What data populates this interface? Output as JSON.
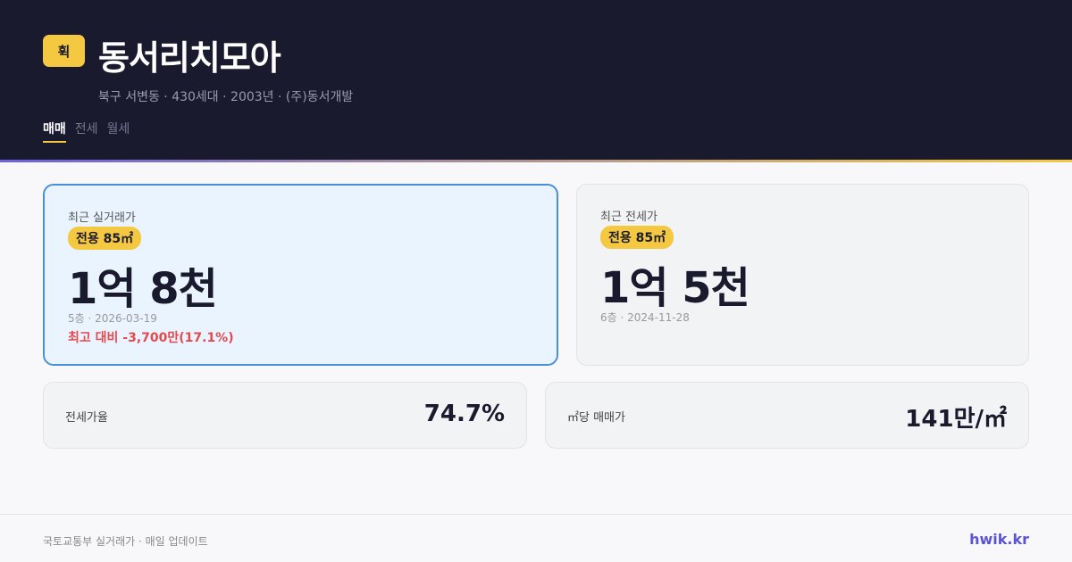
{
  "header": {
    "logo": "휙",
    "title": "동서리치모아",
    "subtitle": "북구 서변동 · 430세대 · 2003년 · (주)동서개발",
    "tabs": [
      {
        "label": "매매",
        "active": true
      },
      {
        "label": "전세",
        "active": false
      },
      {
        "label": "월세",
        "active": false
      }
    ]
  },
  "sale": {
    "label": "최근 실거래가",
    "area": "전용 85㎡",
    "price": "1억 8천",
    "meta": "5층 · 2026-03-19",
    "diff": "최고 대비 -3,700만(17.1%)"
  },
  "jeonse": {
    "label": "최근 전세가",
    "area": "전용 85㎡",
    "price": "1억 5천",
    "meta": "6층 · 2024-11-28"
  },
  "stats": [
    {
      "label": "전세가율",
      "value": "74.7%"
    },
    {
      "label": "㎡당 매매가",
      "value": "141만/㎡"
    }
  ],
  "footer": {
    "source": "국토교통부 실거래가 · 매일 업데이트",
    "brand": "hwik.kr"
  },
  "colors": {
    "header_bg": "#1a1a2e",
    "accent": "#f5c842",
    "highlight_border": "#4a90d9",
    "negative": "#e5484d",
    "brand": "#5b55d6"
  }
}
